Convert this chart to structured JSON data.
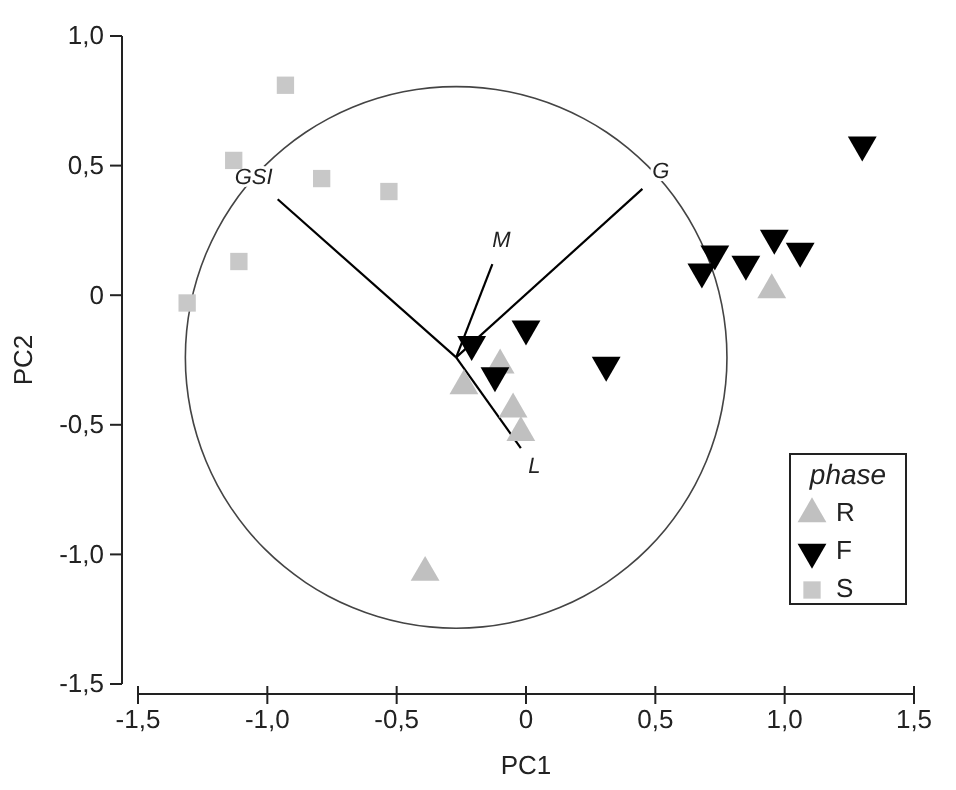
{
  "chart_data": {
    "type": "scatter",
    "xlabel": "PC1",
    "ylabel": "PC2",
    "legend_title": "phase",
    "legend": "bottom right",
    "grid": false,
    "xlim": [
      -1.5,
      1.5
    ],
    "ylim": [
      -1.5,
      1.0
    ],
    "xticks": [
      {
        "value": -1.5,
        "label": "-1,5"
      },
      {
        "value": -1.0,
        "label": "-1,0"
      },
      {
        "value": -0.5,
        "label": "-0,5"
      },
      0,
      {
        "value": 0.5,
        "label": "0,5"
      },
      {
        "value": 1.0,
        "label": "1,0"
      },
      {
        "value": 1.5,
        "label": "1,5"
      }
    ],
    "yticks": [
      {
        "value": -1.5,
        "label": "-1,5"
      },
      {
        "value": -1.0,
        "label": "-1,0"
      },
      {
        "value": -0.5,
        "label": "-0,5"
      },
      0,
      {
        "value": 0.5,
        "label": "0,5"
      },
      {
        "value": 1.0,
        "label": "1,0"
      }
    ],
    "series": [
      {
        "type": "line",
        "name": "GSI",
        "color": "#000000",
        "x": [
          -0.27,
          -0.96
        ],
        "values": [
          -0.24,
          0.37
        ]
      },
      {
        "type": "line",
        "name": "G",
        "color": "#000000",
        "x": [
          -0.27,
          0.45
        ],
        "values": [
          -0.24,
          0.41
        ]
      },
      {
        "type": "line",
        "name": "M",
        "color": "#000000",
        "x": [
          -0.27,
          -0.13
        ],
        "values": [
          -0.24,
          0.12
        ]
      },
      {
        "type": "line",
        "name": "L",
        "color": "#000000",
        "x": [
          -0.27,
          -0.02
        ],
        "values": [
          -0.24,
          -0.59
        ]
      },
      {
        "name": "R",
        "color": "#c0c0c0",
        "marker": "triangle",
        "x": [
          0.95,
          -0.1,
          -0.24,
          -0.05,
          -0.02,
          -0.39
        ],
        "values": [
          0.02,
          -0.27,
          -0.35,
          -0.44,
          -0.53,
          -1.07
        ]
      },
      {
        "name": "F",
        "color": "#000000",
        "marker": "triangle-down",
        "x": [
          1.3,
          0.73,
          0.85,
          0.96,
          1.06,
          0.68,
          0.0,
          -0.21,
          -0.12,
          0.31
        ],
        "values": [
          0.58,
          0.16,
          0.12,
          0.22,
          0.17,
          0.09,
          -0.13,
          -0.19,
          -0.31,
          -0.27
        ]
      },
      {
        "name": "S",
        "color": "#c8c8c8",
        "marker": "square",
        "x": [
          -0.93,
          -1.13,
          -0.79,
          -0.53,
          -1.11,
          -1.31
        ],
        "values": [
          0.81,
          0.52,
          0.45,
          0.4,
          0.13,
          -0.03
        ]
      }
    ]
  }
}
